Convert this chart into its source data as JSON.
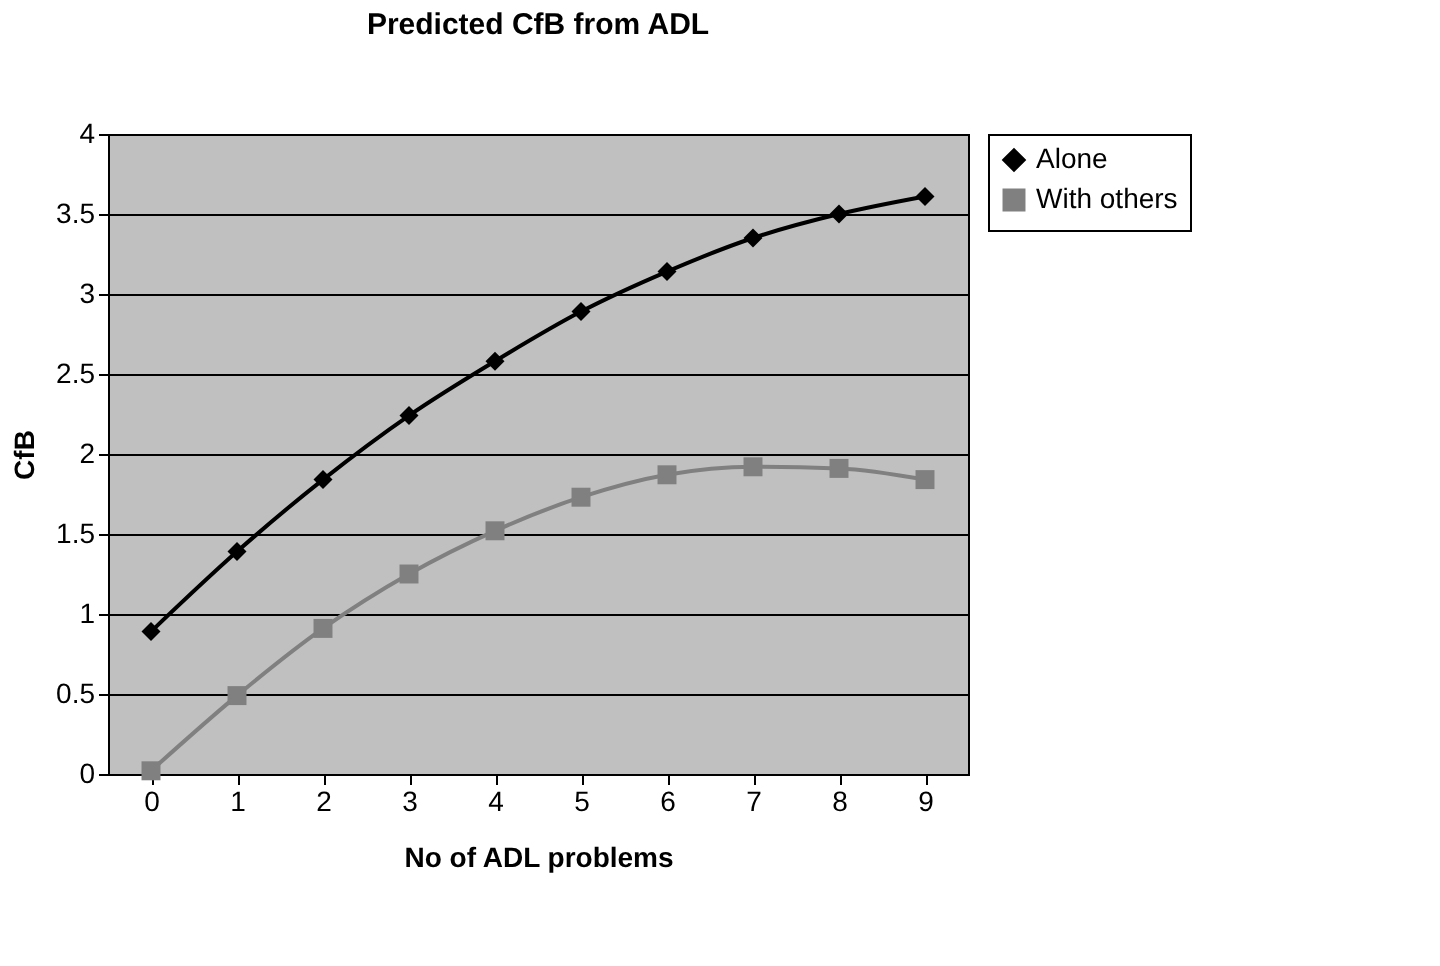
{
  "chart_data": {
    "type": "line",
    "title": "Predicted CfB from ADL",
    "xlabel": "No of ADL problems",
    "ylabel": "CfB",
    "categories": [
      "0",
      "1",
      "2",
      "3",
      "4",
      "5",
      "6",
      "7",
      "8",
      "9"
    ],
    "series": [
      {
        "name": "Alone",
        "color": "#000000",
        "marker": "diamond",
        "values": [
          0.89,
          1.39,
          1.84,
          2.24,
          2.58,
          2.89,
          3.14,
          3.35,
          3.5,
          3.61
        ]
      },
      {
        "name": "With others",
        "color": "#808080",
        "marker": "square",
        "values": [
          0.02,
          0.49,
          0.91,
          1.25,
          1.52,
          1.73,
          1.87,
          1.92,
          1.91,
          1.84
        ]
      }
    ],
    "ylim": [
      0,
      4
    ],
    "yticks": [
      0,
      0.5,
      1,
      1.5,
      2,
      2.5,
      3,
      3.5,
      4
    ],
    "grid": "y",
    "legend": "right",
    "line_style": "solid"
  }
}
